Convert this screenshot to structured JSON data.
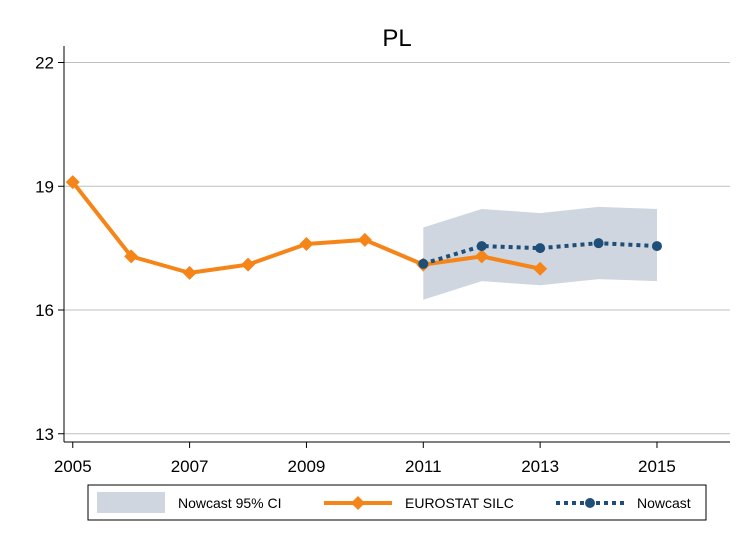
{
  "chart_data": {
    "type": "line",
    "title": "PL",
    "xlabel": "",
    "ylabel": "",
    "xlim": [
      2004.85,
      2016.25
    ],
    "ylim": [
      12.8,
      22.4
    ],
    "xticks": [
      2005,
      2007,
      2009,
      2011,
      2013,
      2015
    ],
    "yticks": [
      13,
      16,
      19,
      22
    ],
    "grid": true,
    "legend_position": "bottom",
    "series": [
      {
        "name": "Nowcast 95% CI",
        "kind": "band",
        "color": "#cfd6df",
        "x": [
          2011,
          2012,
          2013,
          2014,
          2015
        ],
        "lower": [
          16.25,
          16.7,
          16.6,
          16.75,
          16.7
        ],
        "upper": [
          18.0,
          18.45,
          18.35,
          18.5,
          18.45
        ]
      },
      {
        "name": "EUROSTAT SILC",
        "kind": "line",
        "marker": "diamond",
        "color": "#f58518",
        "x": [
          2005,
          2006,
          2007,
          2008,
          2009,
          2010,
          2011,
          2012,
          2013
        ],
        "values": [
          19.1,
          17.3,
          16.9,
          17.1,
          17.6,
          17.7,
          17.1,
          17.3,
          17.0
        ]
      },
      {
        "name": "Nowcast",
        "kind": "line",
        "dash": "dotted",
        "marker": "circle",
        "color": "#1f4e79",
        "x": [
          2011,
          2012,
          2013,
          2014,
          2015
        ],
        "values": [
          17.12,
          17.55,
          17.5,
          17.62,
          17.55
        ]
      }
    ]
  }
}
